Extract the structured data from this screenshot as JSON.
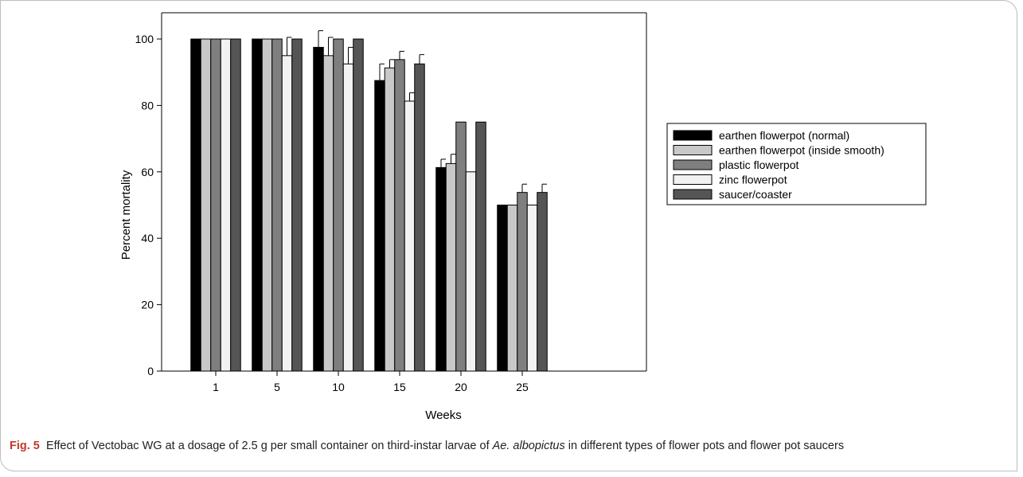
{
  "figure": {
    "label": "Fig. 5",
    "caption_part1": "Effect of Vectobac WG at a dosage of 2.5 g per small container on third-instar larvae of ",
    "caption_species": "Ae. albopictus",
    "caption_part2": " in different types of flower pots and flower pot saucers"
  },
  "chart_data": {
    "type": "bar",
    "xlabel": "Weeks",
    "ylabel": "Percent mortality",
    "ylim": [
      0,
      100
    ],
    "yticks": [
      0,
      20,
      40,
      60,
      80,
      100
    ],
    "categories": [
      "1",
      "5",
      "10",
      "15",
      "20",
      "25"
    ],
    "legend_position": "right",
    "series": [
      {
        "name": "earthen flowerpot (normal)",
        "color": "#000000",
        "values": [
          100,
          100,
          97.5,
          87.5,
          61.3,
          50
        ],
        "errors": [
          0,
          0,
          5,
          5,
          2.5,
          0
        ]
      },
      {
        "name": "earthen flowerpot (inside smooth)",
        "color": "#c8c8c8",
        "values": [
          100,
          100,
          95,
          91.3,
          62.5,
          50
        ],
        "errors": [
          0,
          0,
          5.5,
          2.5,
          2.8,
          0
        ]
      },
      {
        "name": "plastic flowerpot",
        "color": "#7f7f7f",
        "values": [
          100,
          100,
          100,
          93.8,
          75,
          53.8
        ],
        "errors": [
          0,
          0,
          0,
          2.5,
          0,
          2.5
        ]
      },
      {
        "name": "zinc flowerpot",
        "color": "#f2f2f2",
        "values": [
          100,
          95,
          92.5,
          81.3,
          60,
          50
        ],
        "errors": [
          0,
          5.5,
          5,
          2.5,
          0,
          0
        ]
      },
      {
        "name": "saucer/coaster",
        "color": "#555555",
        "values": [
          100,
          100,
          100,
          92.5,
          75,
          53.8
        ],
        "errors": [
          0,
          0,
          0,
          2.8,
          0,
          2.5
        ]
      }
    ]
  }
}
